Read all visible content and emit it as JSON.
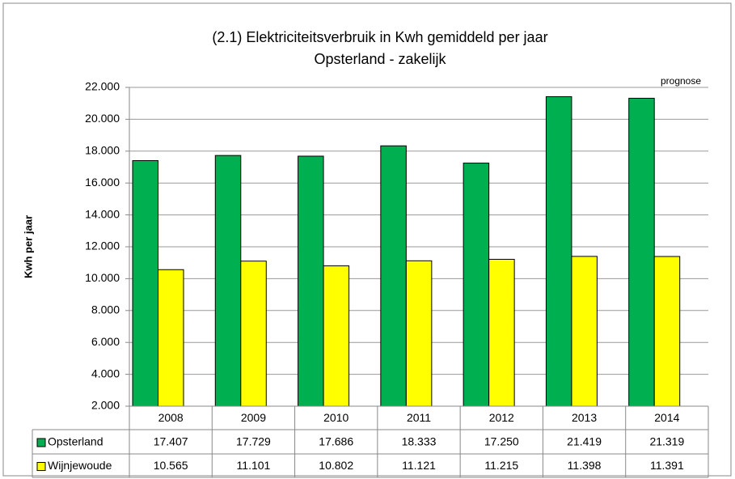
{
  "chart_data": {
    "type": "bar",
    "title": "(2.1) Elektriciteitsverbruik in Kwh gemiddeld per jaar",
    "subtitle": "Opsterland - zakelijk",
    "y_label": "Kwh per jaar",
    "annotation": "prognose",
    "categories": [
      "2008",
      "2009",
      "2010",
      "2011",
      "2012",
      "2013",
      "2014"
    ],
    "series": [
      {
        "name": "Opsterland",
        "color": "#00b050",
        "values": [
          17407,
          17729,
          17686,
          18333,
          17250,
          21419,
          21319
        ],
        "value_labels": [
          "17.407",
          "17.729",
          "17.686",
          "18.333",
          "17.250",
          "21.419",
          "21.319"
        ]
      },
      {
        "name": "Wijnjewoude",
        "color": "#ffff00",
        "values": [
          10565,
          11101,
          10802,
          11121,
          11215,
          11398,
          11391
        ],
        "value_labels": [
          "10.565",
          "11.101",
          "10.802",
          "11.121",
          "11.215",
          "11.398",
          "11.391"
        ]
      }
    ],
    "ylim": [
      2000,
      22000
    ],
    "yticks": [
      {
        "value": 2000,
        "label": "2.000"
      },
      {
        "value": 4000,
        "label": "4.000"
      },
      {
        "value": 6000,
        "label": "6.000"
      },
      {
        "value": 8000,
        "label": "8.000"
      },
      {
        "value": 10000,
        "label": "10.000"
      },
      {
        "value": 12000,
        "label": "12.000"
      },
      {
        "value": 14000,
        "label": "14.000"
      },
      {
        "value": 16000,
        "label": "16.000"
      },
      {
        "value": 18000,
        "label": "18.000"
      },
      {
        "value": 20000,
        "label": "20.000"
      },
      {
        "value": 22000,
        "label": "22.000"
      }
    ],
    "grid": true
  }
}
